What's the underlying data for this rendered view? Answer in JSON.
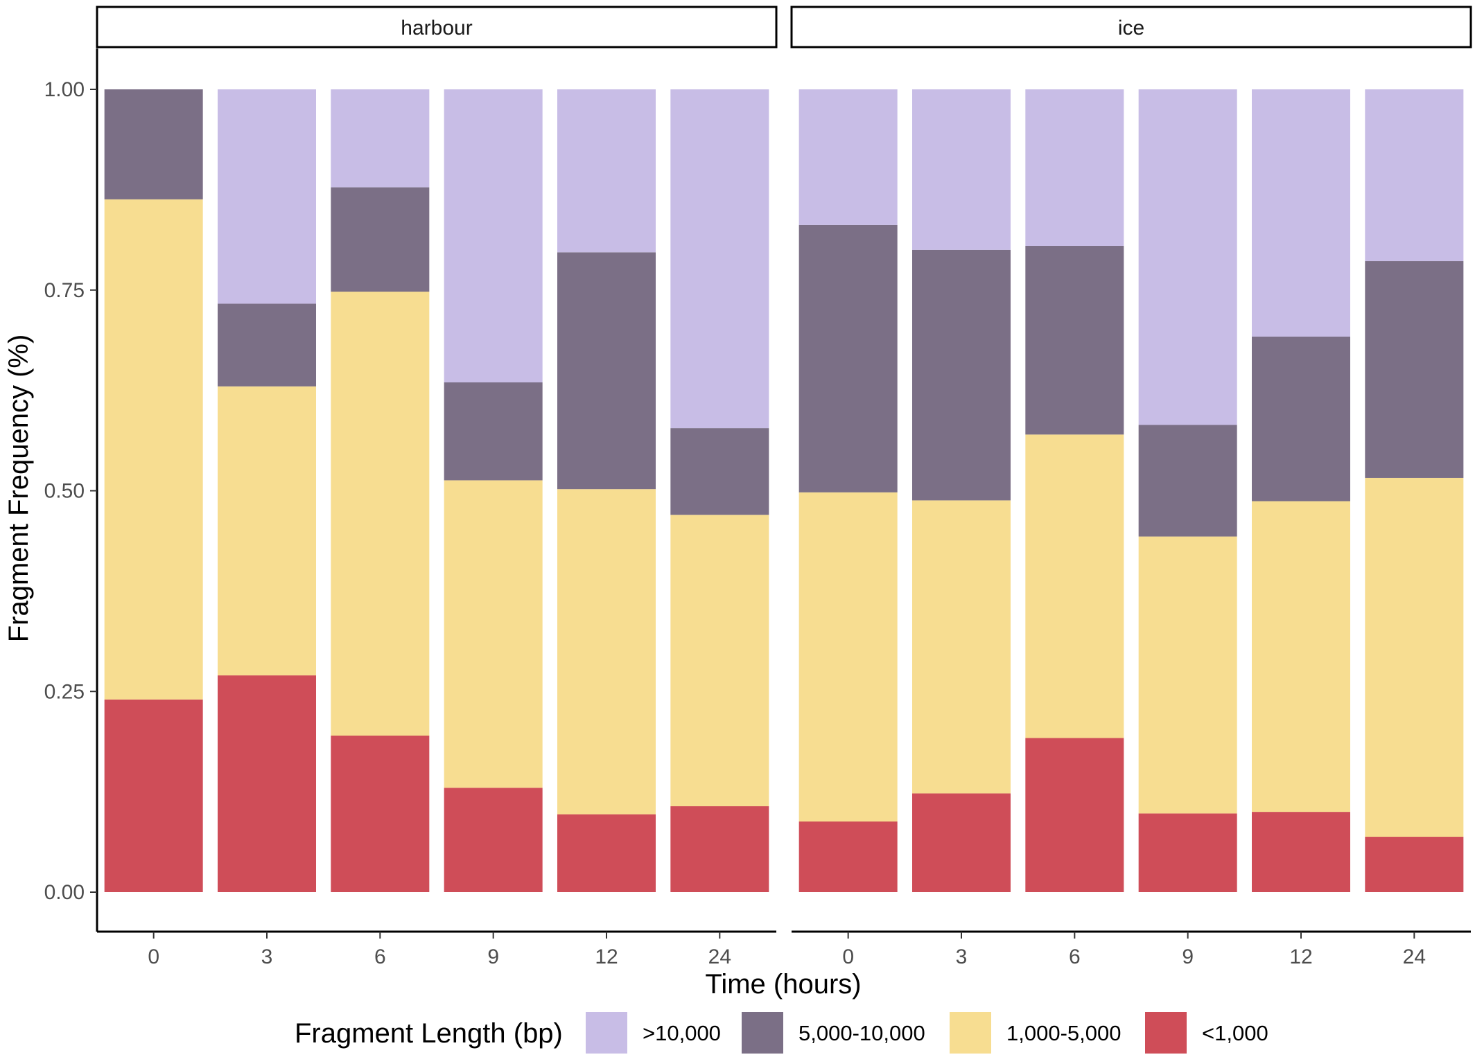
{
  "chart_data": {
    "type": "bar",
    "stacked": true,
    "xlabel": "Time (hours)",
    "ylabel": "Fragment Frequency (%)",
    "ylim": [
      0,
      1
    ],
    "yticks": [
      "0.00",
      "0.25",
      "0.50",
      "0.75",
      "1.00"
    ],
    "ytick_values": [
      0,
      0.25,
      0.5,
      0.75,
      1.0
    ],
    "legend": {
      "title": "Fragment Length (bp)",
      "placement": "bottom",
      "entries": [
        {
          "label": ">10,000",
          "color": "#c8bde6"
        },
        {
          "label": "5,000-10,000",
          "color": "#7b6f86"
        },
        {
          "label": "1,000-5,000",
          "color": "#f7dd91"
        },
        {
          "label": "<1,000",
          "color": "#cf4d58"
        }
      ]
    },
    "series_order_bottom_to_top": [
      "<1,000",
      "1,000-5,000",
      "5,000-10,000",
      ">10,000"
    ],
    "panels": [
      {
        "strip": "harbour",
        "categories": [
          "0",
          "3",
          "6",
          "9",
          "12",
          "24"
        ],
        "series": [
          {
            "name": "<1,000",
            "color": "#cf4d58",
            "values": [
              0.24,
              0.27,
              0.195,
              0.13,
              0.097,
              0.107
            ]
          },
          {
            "name": "1,000-5,000",
            "color": "#f7dd91",
            "values": [
              0.623,
              0.36,
              0.553,
              0.383,
              0.405,
              0.363
            ]
          },
          {
            "name": "5,000-10,000",
            "color": "#7b6f86",
            "values": [
              0.137,
              0.103,
              0.13,
              0.122,
              0.295,
              0.108
            ]
          },
          {
            "name": ">10,000",
            "color": "#c8bde6",
            "values": [
              0.0,
              0.267,
              0.122,
              0.365,
              0.203,
              0.422
            ]
          }
        ]
      },
      {
        "strip": "ice",
        "categories": [
          "0",
          "3",
          "6",
          "9",
          "12",
          "24"
        ],
        "series": [
          {
            "name": "<1,000",
            "color": "#cf4d58",
            "values": [
              0.088,
              0.123,
              0.192,
              0.098,
              0.1,
              0.069
            ]
          },
          {
            "name": "1,000-5,000",
            "color": "#f7dd91",
            "values": [
              0.41,
              0.365,
              0.378,
              0.345,
              0.387,
              0.447
            ]
          },
          {
            "name": "5,000-10,000",
            "color": "#7b6f86",
            "values": [
              0.333,
              0.312,
              0.235,
              0.139,
              0.205,
              0.27
            ]
          },
          {
            "name": ">10,000",
            "color": "#c8bde6",
            "values": [
              0.169,
              0.2,
              0.195,
              0.418,
              0.308,
              0.214
            ]
          }
        ]
      }
    ]
  }
}
